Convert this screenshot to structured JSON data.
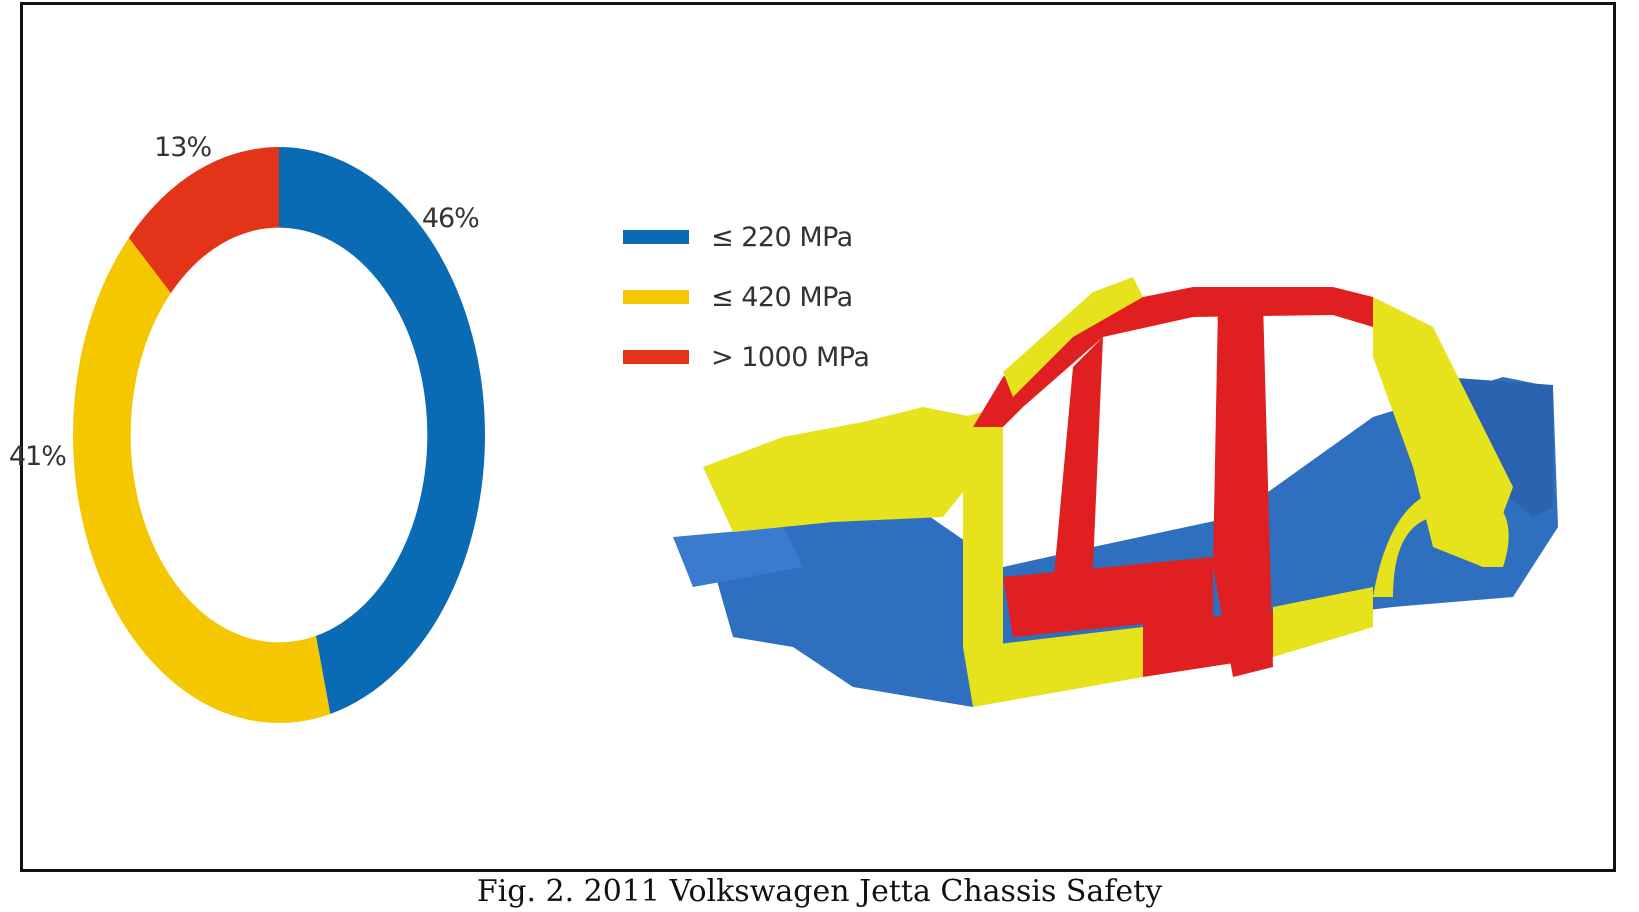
{
  "colors": {
    "blue": "#0a6bb5",
    "yellow": "#f5c700",
    "red": "#e3341a",
    "car_yellow": "#e6e21c",
    "car_red": "#e02020",
    "car_blue": "#2f6fc0"
  },
  "chart_data": {
    "type": "pie",
    "variant": "donut",
    "title": "",
    "categories": [
      "≤ 220 MPa",
      "≤ 420 MPa",
      "> 1000 MPa"
    ],
    "values": [
      46,
      41,
      13
    ],
    "value_labels": [
      "46%",
      "41%",
      "13%"
    ],
    "legend_position": "right",
    "colors": [
      "#0a6bb5",
      "#f5c700",
      "#e3341a"
    ]
  },
  "legend": {
    "items": [
      {
        "label": "≤ 220 MPa"
      },
      {
        "label": "≤ 420 MPa"
      },
      {
        "label": "> 1000 MPa"
      }
    ]
  },
  "caption": "Fig. 2. 2011 Volkswagen Jetta Chassis Safety"
}
